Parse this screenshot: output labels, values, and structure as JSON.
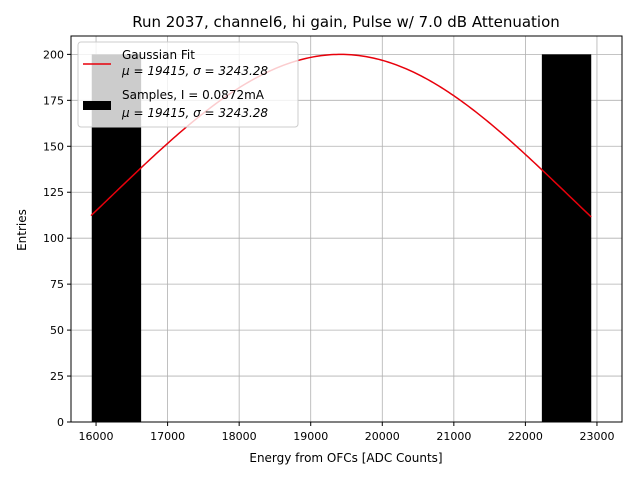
{
  "chart_data": {
    "type": "bar",
    "title": "Run 2037, channel6, hi gain, Pulse w/ 7.0 dB Attenuation",
    "xlabel": "Energy from OFCs [ADC Counts]",
    "ylabel": "Entries",
    "xlim": [
      15650,
      23350
    ],
    "ylim": [
      0,
      210
    ],
    "grid": true,
    "legend_position": "top-left",
    "x_ticks": [
      "16000",
      "17000",
      "18000",
      "19000",
      "20000",
      "21000",
      "22000",
      "23000"
    ],
    "y_ticks": [
      "0",
      "25",
      "50",
      "75",
      "100",
      "125",
      "150",
      "175",
      "200"
    ],
    "histogram": {
      "name": "Samples, I = 0.0872mA",
      "stats": "μ = 19415, σ = 3243.28",
      "color": "#000000",
      "bins": [
        {
          "x_start": 15940,
          "x_end": 16630,
          "value": 200
        },
        {
          "x_start": 22230,
          "x_end": 22920,
          "value": 200
        }
      ]
    },
    "fit": {
      "name": "Gaussian Fit",
      "stats": "μ = 19415, σ = 3243.28",
      "color": "#e8000b",
      "amplitude": 200,
      "mu": 19415,
      "sigma": 3243.28,
      "x_range": [
        15930,
        22920
      ]
    }
  }
}
